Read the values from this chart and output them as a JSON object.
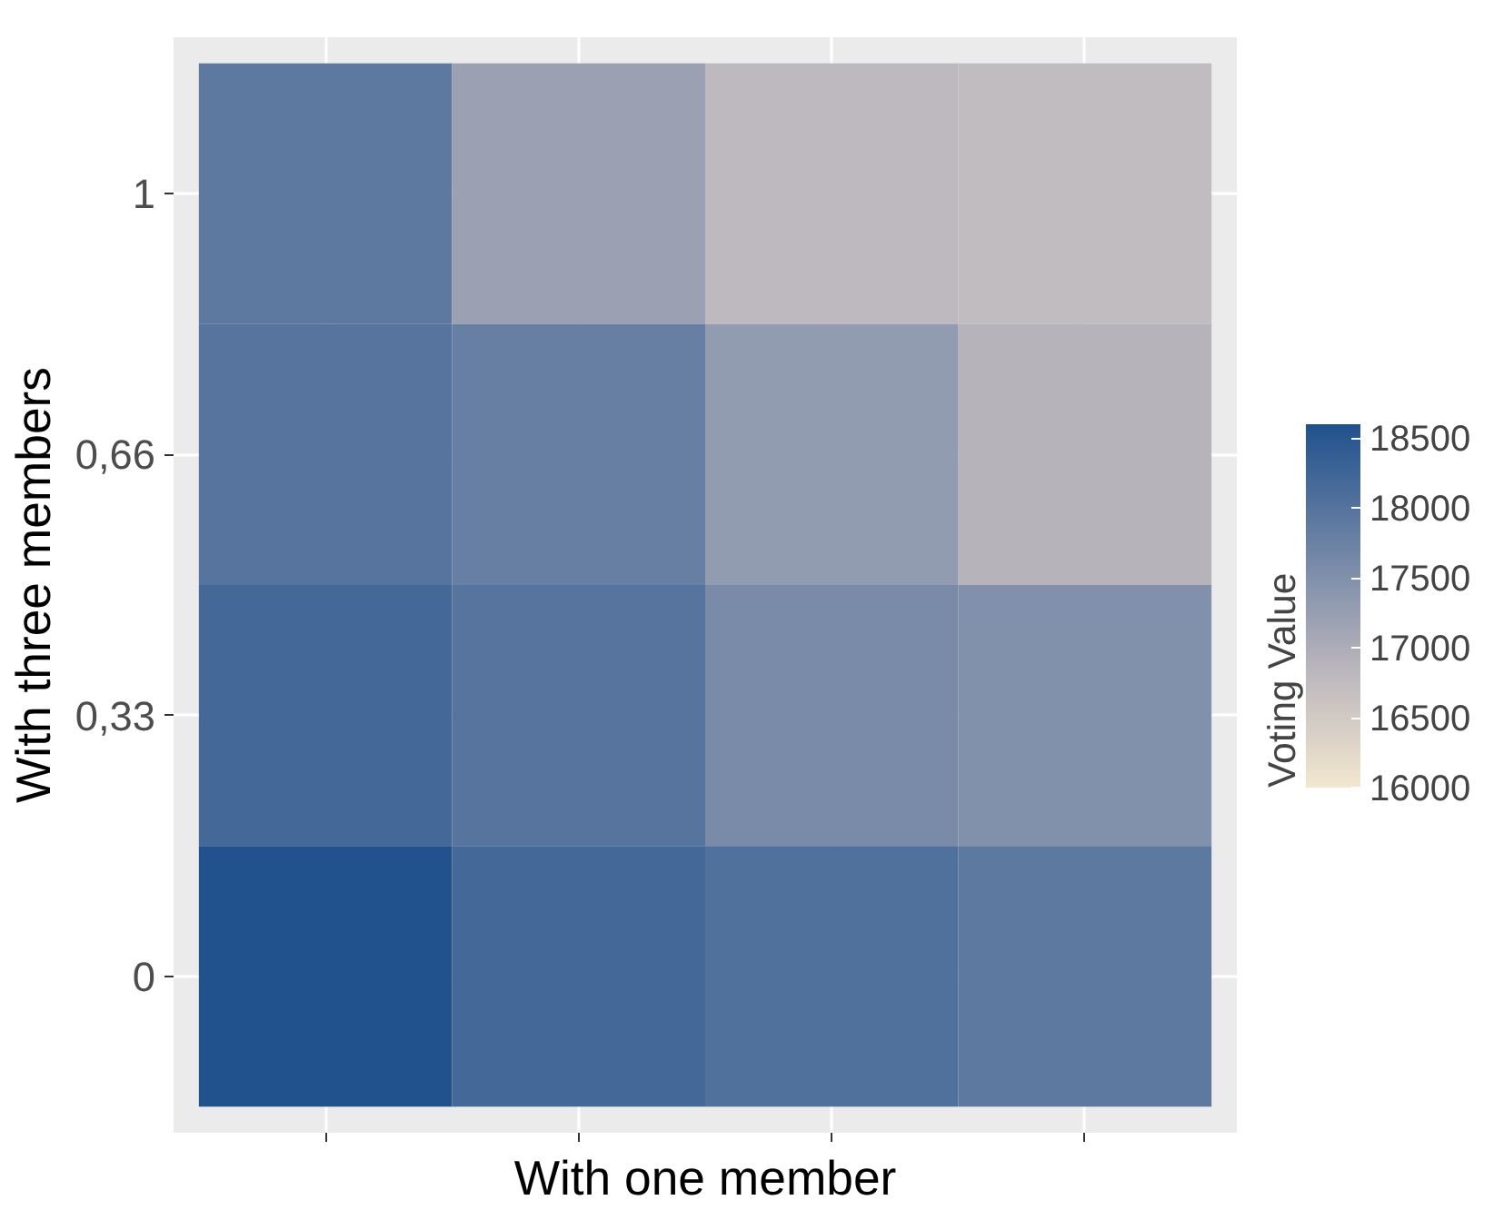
{
  "chart_data": {
    "type": "heatmap",
    "xlabel": "With one member",
    "ylabel": "With three members",
    "legend_title": "Voting Value",
    "categories": [
      null,
      null,
      null,
      null
    ],
    "y_categories": [
      "1",
      "0,66",
      "0,33",
      "0"
    ],
    "cells": [
      [
        17900,
        17200,
        16800,
        16750
      ],
      [
        18000,
        17800,
        17300,
        16900
      ],
      [
        18200,
        18000,
        17600,
        17500
      ],
      [
        18600,
        18200,
        18050,
        17900
      ]
    ],
    "clim": [
      16000,
      18600
    ],
    "cticks": [
      16000,
      16500,
      17000,
      17500,
      18000,
      18500
    ],
    "tick_labels": "y",
    "grid": true
  }
}
